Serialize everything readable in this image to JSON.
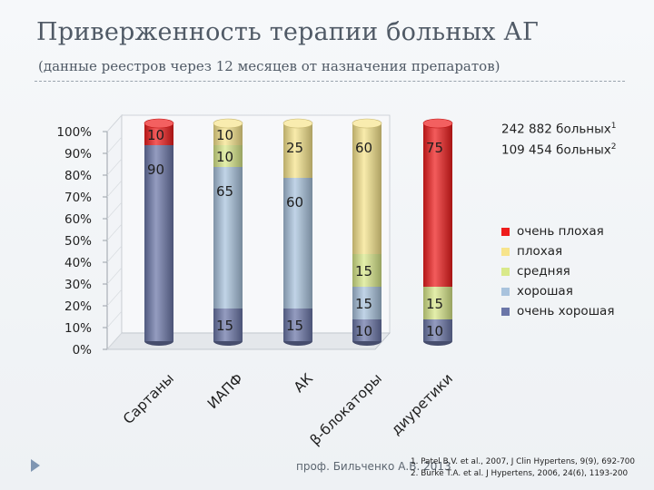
{
  "slide": {
    "title": "Приверженность терапии больных АГ",
    "subtitle": "(данные реестров через 12 месяцев от назначения препаратов)",
    "patient_counts": [
      {
        "text": "242 882 больных",
        "sup": "1"
      },
      {
        "text": "109 454 больных",
        "sup": "2"
      }
    ],
    "footer_author": "проф. Бильченко А.В. 2013",
    "references": [
      "1. Patel B.V. et al., 2007, J Clin Hypertens, 9(9), 692-700",
      "2. Burke T.A. et al. J Hypertens, 2006, 24(6), 1193-200"
    ]
  },
  "chart_data": {
    "type": "bar",
    "stacked": true,
    "percent": true,
    "categories": [
      "Сартаны",
      "ИАПФ",
      "АК",
      "β-блокаторы",
      "диуретики"
    ],
    "yticks": [
      "0%",
      "10%",
      "20%",
      "30%",
      "40%",
      "50%",
      "60%",
      "70%",
      "80%",
      "90%",
      "100%"
    ],
    "ylim": [
      0,
      100
    ],
    "legend_position": "right",
    "series": [
      {
        "name": "очень хорошая",
        "color": "#6b76a8",
        "values": [
          90,
          15,
          15,
          10,
          10
        ],
        "labels": [
          "90",
          "15",
          "15",
          "10",
          "10"
        ]
      },
      {
        "name": "хорошая",
        "color": "#a9c3dd",
        "values": [
          0,
          65,
          60,
          15,
          0
        ],
        "labels": [
          "",
          "65",
          "60",
          "15",
          ""
        ]
      },
      {
        "name": "средняя",
        "color": "#d9e98a",
        "values": [
          0,
          10,
          0,
          15,
          15
        ],
        "labels": [
          "",
          "10",
          "",
          "15",
          "15"
        ]
      },
      {
        "name": "плохая",
        "color": "#f7e48c",
        "values": [
          0,
          10,
          25,
          60,
          0
        ],
        "labels": [
          "",
          "10",
          "25",
          "60",
          ""
        ]
      },
      {
        "name": "очень плохая",
        "color": "#ee1c1c",
        "values": [
          10,
          0,
          0,
          0,
          75
        ],
        "labels": [
          "10",
          "",
          "",
          "",
          "75"
        ]
      }
    ]
  }
}
